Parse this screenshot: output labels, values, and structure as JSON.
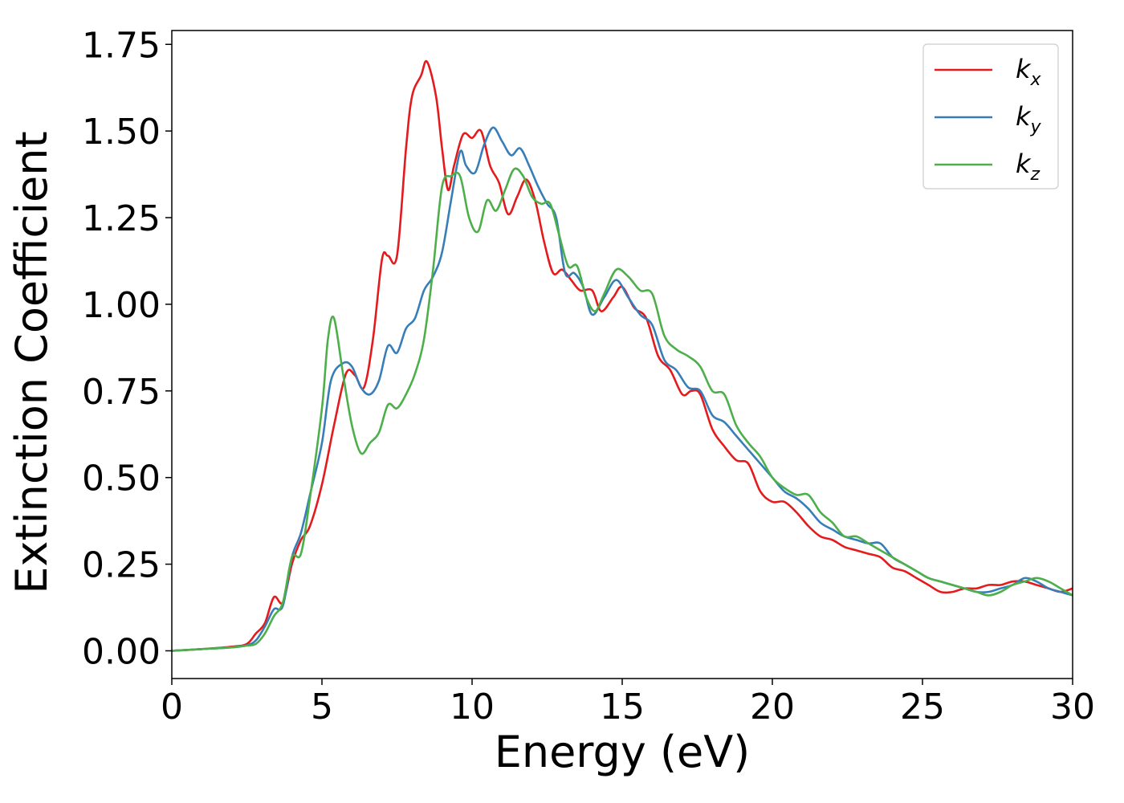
{
  "chart_data": {
    "type": "line",
    "title": "",
    "xlabel": "Energy (eV)",
    "ylabel": "Extinction Coefficient",
    "xlim": [
      0,
      30
    ],
    "ylim": [
      -0.08,
      1.79
    ],
    "xticks": [
      0,
      5,
      10,
      15,
      20,
      25,
      30
    ],
    "xtick_labels": [
      "0",
      "5",
      "10",
      "15",
      "20",
      "25",
      "30"
    ],
    "yticks": [
      0.0,
      0.25,
      0.5,
      0.75,
      1.0,
      1.25,
      1.5,
      1.75
    ],
    "ytick_labels": [
      "0.00",
      "0.25",
      "0.50",
      "0.75",
      "1.00",
      "1.25",
      "1.50",
      "1.75"
    ],
    "grid": false,
    "legend_position": "top-right",
    "series": [
      {
        "name": "k_x",
        "label_base": "k",
        "label_sub": "x",
        "color": "#e41a1c",
        "x": [
          0,
          1,
          2,
          2.5,
          2.8,
          3.1,
          3.4,
          3.7,
          4.0,
          4.3,
          4.6,
          5.0,
          5.4,
          5.8,
          6.1,
          6.4,
          6.7,
          7.0,
          7.2,
          7.5,
          7.8,
          8.0,
          8.3,
          8.5,
          8.8,
          9.0,
          9.2,
          9.4,
          9.7,
          10.0,
          10.3,
          10.6,
          10.9,
          11.2,
          11.5,
          11.8,
          12.1,
          12.4,
          12.7,
          13.0,
          13.3,
          13.6,
          14.0,
          14.3,
          14.7,
          15.0,
          15.4,
          15.8,
          16.2,
          16.6,
          17.0,
          17.3,
          17.6,
          18.0,
          18.4,
          18.8,
          19.2,
          19.6,
          20.0,
          20.4,
          20.8,
          21.2,
          21.6,
          22.0,
          22.4,
          22.8,
          23.2,
          23.6,
          24.0,
          24.4,
          24.8,
          25.2,
          25.6,
          26.0,
          26.4,
          26.8,
          27.2,
          27.6,
          28.0,
          28.4,
          28.8,
          29.2,
          29.6,
          30.0
        ],
        "y": [
          0.0,
          0.005,
          0.012,
          0.02,
          0.05,
          0.08,
          0.155,
          0.14,
          0.25,
          0.32,
          0.36,
          0.48,
          0.65,
          0.8,
          0.795,
          0.76,
          0.9,
          1.13,
          1.14,
          1.14,
          1.45,
          1.6,
          1.66,
          1.7,
          1.6,
          1.45,
          1.33,
          1.4,
          1.49,
          1.48,
          1.5,
          1.4,
          1.35,
          1.26,
          1.31,
          1.36,
          1.3,
          1.18,
          1.09,
          1.1,
          1.07,
          1.04,
          1.04,
          0.98,
          1.02,
          1.05,
          0.99,
          0.96,
          0.85,
          0.81,
          0.74,
          0.75,
          0.74,
          0.64,
          0.59,
          0.55,
          0.54,
          0.46,
          0.43,
          0.43,
          0.4,
          0.36,
          0.33,
          0.32,
          0.3,
          0.29,
          0.28,
          0.27,
          0.24,
          0.23,
          0.21,
          0.19,
          0.17,
          0.17,
          0.18,
          0.18,
          0.19,
          0.19,
          0.2,
          0.2,
          0.19,
          0.18,
          0.17,
          0.18
        ]
      },
      {
        "name": "k_y",
        "label_base": "k",
        "label_sub": "y",
        "color": "#377eb8",
        "x": [
          0,
          1,
          2,
          2.5,
          2.8,
          3.1,
          3.4,
          3.7,
          4.0,
          4.3,
          4.6,
          5.0,
          5.3,
          5.7,
          6.0,
          6.3,
          6.6,
          6.9,
          7.2,
          7.5,
          7.8,
          8.1,
          8.4,
          8.7,
          9.0,
          9.3,
          9.6,
          9.8,
          10.1,
          10.4,
          10.7,
          11.0,
          11.3,
          11.6,
          11.9,
          12.2,
          12.5,
          12.8,
          13.1,
          13.4,
          13.7,
          14.0,
          14.4,
          14.8,
          15.2,
          15.6,
          16.0,
          16.4,
          16.8,
          17.2,
          17.6,
          18.0,
          18.4,
          18.8,
          19.2,
          19.6,
          20.0,
          20.4,
          20.8,
          21.2,
          21.6,
          22.0,
          22.4,
          22.8,
          23.2,
          23.6,
          24.0,
          24.4,
          24.8,
          25.2,
          25.6,
          26.0,
          26.4,
          26.8,
          27.2,
          27.6,
          28.0,
          28.4,
          28.8,
          29.2,
          29.6,
          30.0
        ],
        "y": [
          0.0,
          0.005,
          0.01,
          0.016,
          0.03,
          0.07,
          0.12,
          0.13,
          0.27,
          0.34,
          0.45,
          0.6,
          0.78,
          0.83,
          0.82,
          0.76,
          0.74,
          0.78,
          0.88,
          0.86,
          0.93,
          0.96,
          1.04,
          1.08,
          1.15,
          1.3,
          1.44,
          1.4,
          1.38,
          1.46,
          1.51,
          1.47,
          1.43,
          1.45,
          1.4,
          1.34,
          1.29,
          1.25,
          1.09,
          1.09,
          1.05,
          0.97,
          1.02,
          1.07,
          1.02,
          0.97,
          0.94,
          0.84,
          0.81,
          0.76,
          0.75,
          0.68,
          0.66,
          0.62,
          0.58,
          0.54,
          0.5,
          0.46,
          0.44,
          0.41,
          0.37,
          0.35,
          0.33,
          0.32,
          0.31,
          0.31,
          0.27,
          0.25,
          0.23,
          0.21,
          0.2,
          0.19,
          0.18,
          0.17,
          0.17,
          0.18,
          0.19,
          0.21,
          0.2,
          0.18,
          0.17,
          0.16
        ]
      },
      {
        "name": "k_z",
        "label_base": "k",
        "label_sub": "z",
        "color": "#4daf4a",
        "x": [
          0,
          1,
          2,
          2.5,
          2.8,
          3.1,
          3.4,
          3.7,
          4.0,
          4.3,
          4.6,
          5.0,
          5.2,
          5.4,
          5.7,
          6.0,
          6.3,
          6.6,
          6.9,
          7.2,
          7.5,
          7.8,
          8.1,
          8.4,
          8.7,
          9.0,
          9.3,
          9.6,
          9.9,
          10.2,
          10.5,
          10.8,
          11.1,
          11.4,
          11.7,
          12.0,
          12.3,
          12.6,
          12.9,
          13.2,
          13.5,
          13.8,
          14.1,
          14.4,
          14.8,
          15.2,
          15.6,
          16.0,
          16.4,
          16.8,
          17.2,
          17.6,
          18.0,
          18.4,
          18.8,
          19.2,
          19.6,
          20.0,
          20.4,
          20.8,
          21.2,
          21.6,
          22.0,
          22.4,
          22.8,
          23.2,
          23.6,
          24.0,
          24.4,
          24.8,
          25.2,
          25.6,
          26.0,
          26.4,
          26.8,
          27.2,
          27.6,
          28.0,
          28.4,
          28.8,
          29.2,
          29.6,
          30.0
        ],
        "y": [
          0.0,
          0.005,
          0.01,
          0.015,
          0.02,
          0.05,
          0.1,
          0.14,
          0.27,
          0.28,
          0.44,
          0.7,
          0.9,
          0.96,
          0.8,
          0.65,
          0.57,
          0.6,
          0.63,
          0.71,
          0.7,
          0.74,
          0.8,
          0.9,
          1.1,
          1.34,
          1.37,
          1.37,
          1.25,
          1.21,
          1.3,
          1.27,
          1.33,
          1.39,
          1.37,
          1.31,
          1.29,
          1.29,
          1.2,
          1.11,
          1.11,
          1.02,
          0.98,
          1.03,
          1.1,
          1.08,
          1.04,
          1.03,
          0.91,
          0.87,
          0.85,
          0.82,
          0.75,
          0.74,
          0.65,
          0.6,
          0.56,
          0.5,
          0.47,
          0.45,
          0.45,
          0.4,
          0.37,
          0.33,
          0.33,
          0.31,
          0.29,
          0.27,
          0.25,
          0.23,
          0.21,
          0.2,
          0.19,
          0.18,
          0.17,
          0.16,
          0.17,
          0.19,
          0.2,
          0.21,
          0.2,
          0.18,
          0.16
        ]
      }
    ]
  }
}
